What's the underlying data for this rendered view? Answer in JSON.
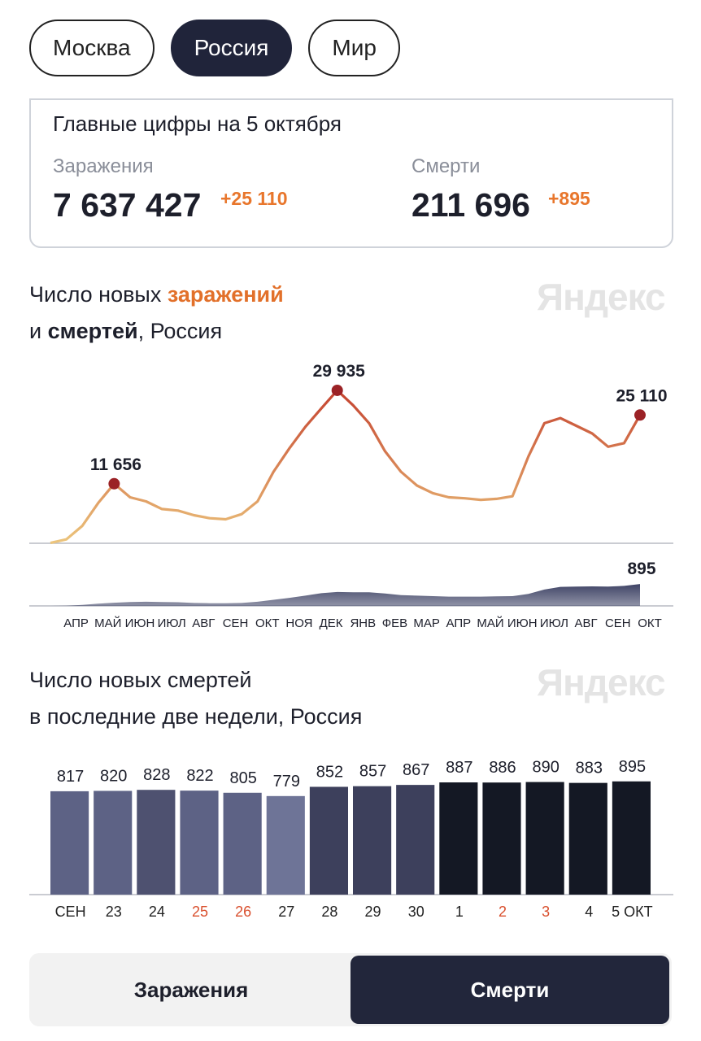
{
  "tabs": {
    "items": [
      "Москва",
      "Россия",
      "Мир"
    ],
    "active": 1
  },
  "summary": {
    "title": "Главные цифры на 5 октября",
    "infections": {
      "label": "Заражения",
      "value": "7 637 427",
      "delta": "+25 110"
    },
    "deaths": {
      "label": "Смерти",
      "value": "211 696",
      "delta": "+895"
    }
  },
  "chart_data": [
    {
      "type": "line",
      "watermark": "Яндекс",
      "title": [
        "Число новых ",
        "заражений",
        "и ",
        "смертей",
        ", Россия"
      ],
      "categories": [
        null,
        "АПР",
        null,
        "МАЙ",
        null,
        "ИЮН",
        null,
        "ИЮЛ",
        null,
        "АВГ",
        null,
        "СЕН",
        null,
        "ОКТ",
        null,
        "НОЯ",
        null,
        "ДЕК",
        null,
        "ЯНВ",
        null,
        "ФЕВ",
        null,
        "МАР",
        null,
        "АПР",
        null,
        "МАЙ",
        null,
        "ИЮН",
        null,
        "ИЮЛ",
        null,
        "АВГ",
        null,
        "СЕН",
        null,
        "ОКТ"
      ],
      "ylim": [
        0,
        32000
      ],
      "y2lim": [
        0,
        1000
      ],
      "series": [
        {
          "name": "заражения",
          "color": [
            "#ecc57c",
            "#c23a2a"
          ],
          "marker_color": "#9b2226",
          "values": [
            60,
            770,
            3400,
            7900,
            11656,
            9000,
            8200,
            6700,
            6400,
            5500,
            4900,
            4700,
            5700,
            8200,
            14000,
            18600,
            22800,
            26400,
            29935,
            27000,
            23500,
            18000,
            14000,
            11300,
            9800,
            9000,
            8800,
            8500,
            8700,
            9200,
            17000,
            23500,
            24500,
            23000,
            21500,
            18900,
            19600,
            25110
          ],
          "value_labels": [
            null,
            null,
            null,
            null,
            "11 656",
            null,
            null,
            null,
            null,
            null,
            null,
            null,
            null,
            null,
            null,
            null,
            null,
            null,
            "29 935",
            null,
            null,
            null,
            null,
            null,
            null,
            null,
            null,
            null,
            null,
            null,
            null,
            null,
            null,
            null,
            null,
            null,
            null,
            "25 110"
          ]
        },
        {
          "name": "смерти",
          "axis": "y2",
          "color": "#353a5e",
          "values": [
            1,
            10,
            40,
            90,
            130,
            160,
            170,
            160,
            150,
            120,
            110,
            110,
            120,
            170,
            250,
            330,
            420,
            520,
            570,
            560,
            560,
            510,
            440,
            420,
            400,
            380,
            380,
            380,
            390,
            400,
            490,
            670,
            780,
            790,
            800,
            790,
            820,
            895
          ],
          "value_labels": [
            null,
            null,
            null,
            null,
            null,
            null,
            null,
            null,
            null,
            null,
            null,
            null,
            null,
            null,
            null,
            null,
            null,
            null,
            null,
            null,
            null,
            null,
            null,
            null,
            null,
            null,
            null,
            null,
            null,
            null,
            null,
            null,
            null,
            null,
            null,
            null,
            null,
            "895"
          ]
        }
      ]
    },
    {
      "type": "bar",
      "watermark": "Яндекс",
      "title": [
        "Число новых смертей",
        "в последние две недели, Россия"
      ],
      "categories": [
        "СЕН",
        "23",
        "24",
        "25",
        "26",
        "27",
        "28",
        "29",
        "30",
        "1",
        "2",
        "3",
        "4",
        "5 ОКТ"
      ],
      "values": [
        817,
        820,
        828,
        822,
        805,
        779,
        852,
        857,
        867,
        887,
        886,
        890,
        883,
        895
      ],
      "colors": [
        "#5d6285",
        "#5d6285",
        "#4e5170",
        "#5d6285",
        "#5d6285",
        "#6e7497",
        "#3d405c",
        "#3d405c",
        "#3d405c",
        "#141824",
        "#141824",
        "#141824",
        "#141824",
        "#141824"
      ],
      "label_colors": [
        "#222222",
        "#222222",
        "#222222",
        "#d9502e",
        "#d9502e",
        "#222222",
        "#222222",
        "#222222",
        "#222222",
        "#222222",
        "#d9502e",
        "#d9502e",
        "#222222",
        "#222222"
      ],
      "ylim": [
        0,
        900
      ]
    }
  ],
  "toggle": {
    "items": [
      "Заражения",
      "Смерти"
    ],
    "active": 1
  }
}
